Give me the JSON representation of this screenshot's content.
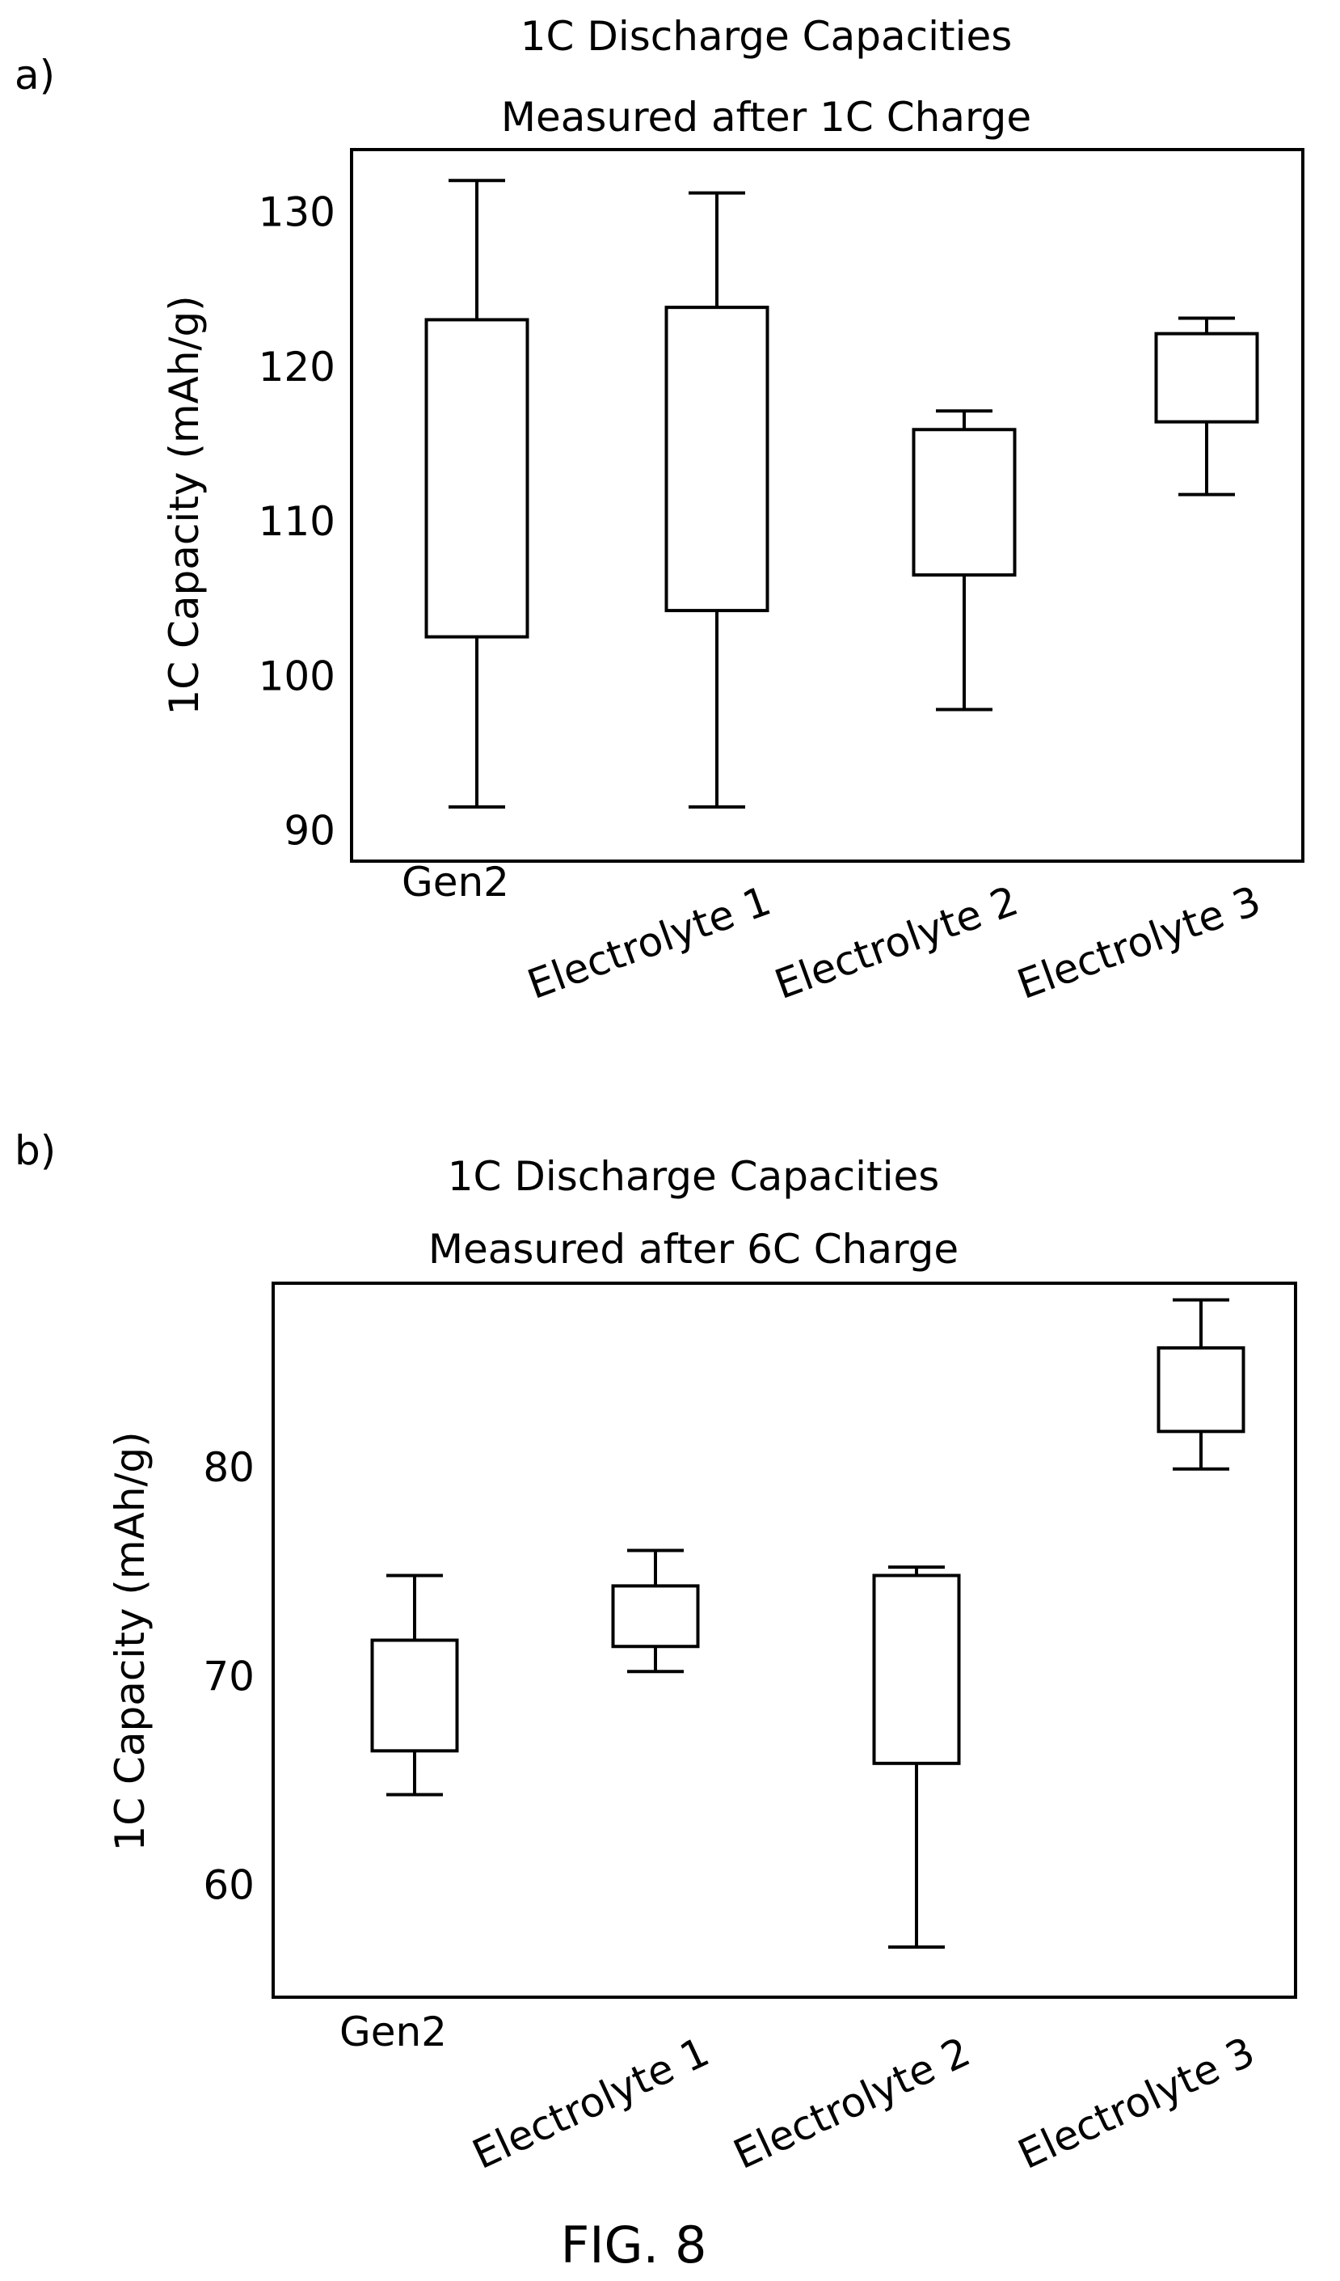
{
  "figure_caption": "FIG. 8",
  "chart_data": [
    {
      "panel_label": "a)",
      "type": "box",
      "title": "1C Discharge Capacities",
      "subtitle": "Measured after 1C Charge",
      "ylabel": "1C Capacity (mAh/g)",
      "xlabel": "",
      "ylim": [
        88,
        134
      ],
      "yticks": [
        90,
        100,
        110,
        120,
        130
      ],
      "grid": false,
      "categories": [
        "Gen2",
        "Electrolyte 1",
        "Electrolyte 2",
        "Electrolyte 3"
      ],
      "boxes": [
        {
          "category": "Gen2",
          "min": 91.5,
          "q1": 102.5,
          "q3": 123,
          "max": 132
        },
        {
          "category": "Electrolyte 1",
          "min": 91.5,
          "q1": 104.2,
          "q3": 123.8,
          "max": 131.2
        },
        {
          "category": "Electrolyte 2",
          "min": 97.8,
          "q1": 106.5,
          "q3": 115.9,
          "max": 117.1
        },
        {
          "category": "Electrolyte 3",
          "min": 111.7,
          "q1": 116.4,
          "q3": 122.1,
          "max": 123.1
        }
      ]
    },
    {
      "panel_label": "b)",
      "type": "box",
      "title": "1C Discharge Capacities",
      "subtitle": "Measured after 6C Charge",
      "ylabel": "1C Capacity (mAh/g)",
      "xlabel": "",
      "ylim": [
        54.6,
        88.8
      ],
      "yticks": [
        60,
        70,
        80
      ],
      "grid": false,
      "categories": [
        "Gen2",
        "Electrolyte 1",
        "Electrolyte 2",
        "Electrolyte 3"
      ],
      "boxes": [
        {
          "category": "Gen2",
          "min": 64.3,
          "q1": 66.4,
          "q3": 71.7,
          "max": 74.8
        },
        {
          "category": "Electrolyte 1",
          "min": 70.2,
          "q1": 71.4,
          "q3": 74.3,
          "max": 76.0
        },
        {
          "category": "Electrolyte 2",
          "min": 57.0,
          "q1": 65.8,
          "q3": 74.8,
          "max": 75.2
        },
        {
          "category": "Electrolyte 3",
          "min": 79.9,
          "q1": 81.7,
          "q3": 85.7,
          "max": 88.0
        }
      ]
    }
  ]
}
